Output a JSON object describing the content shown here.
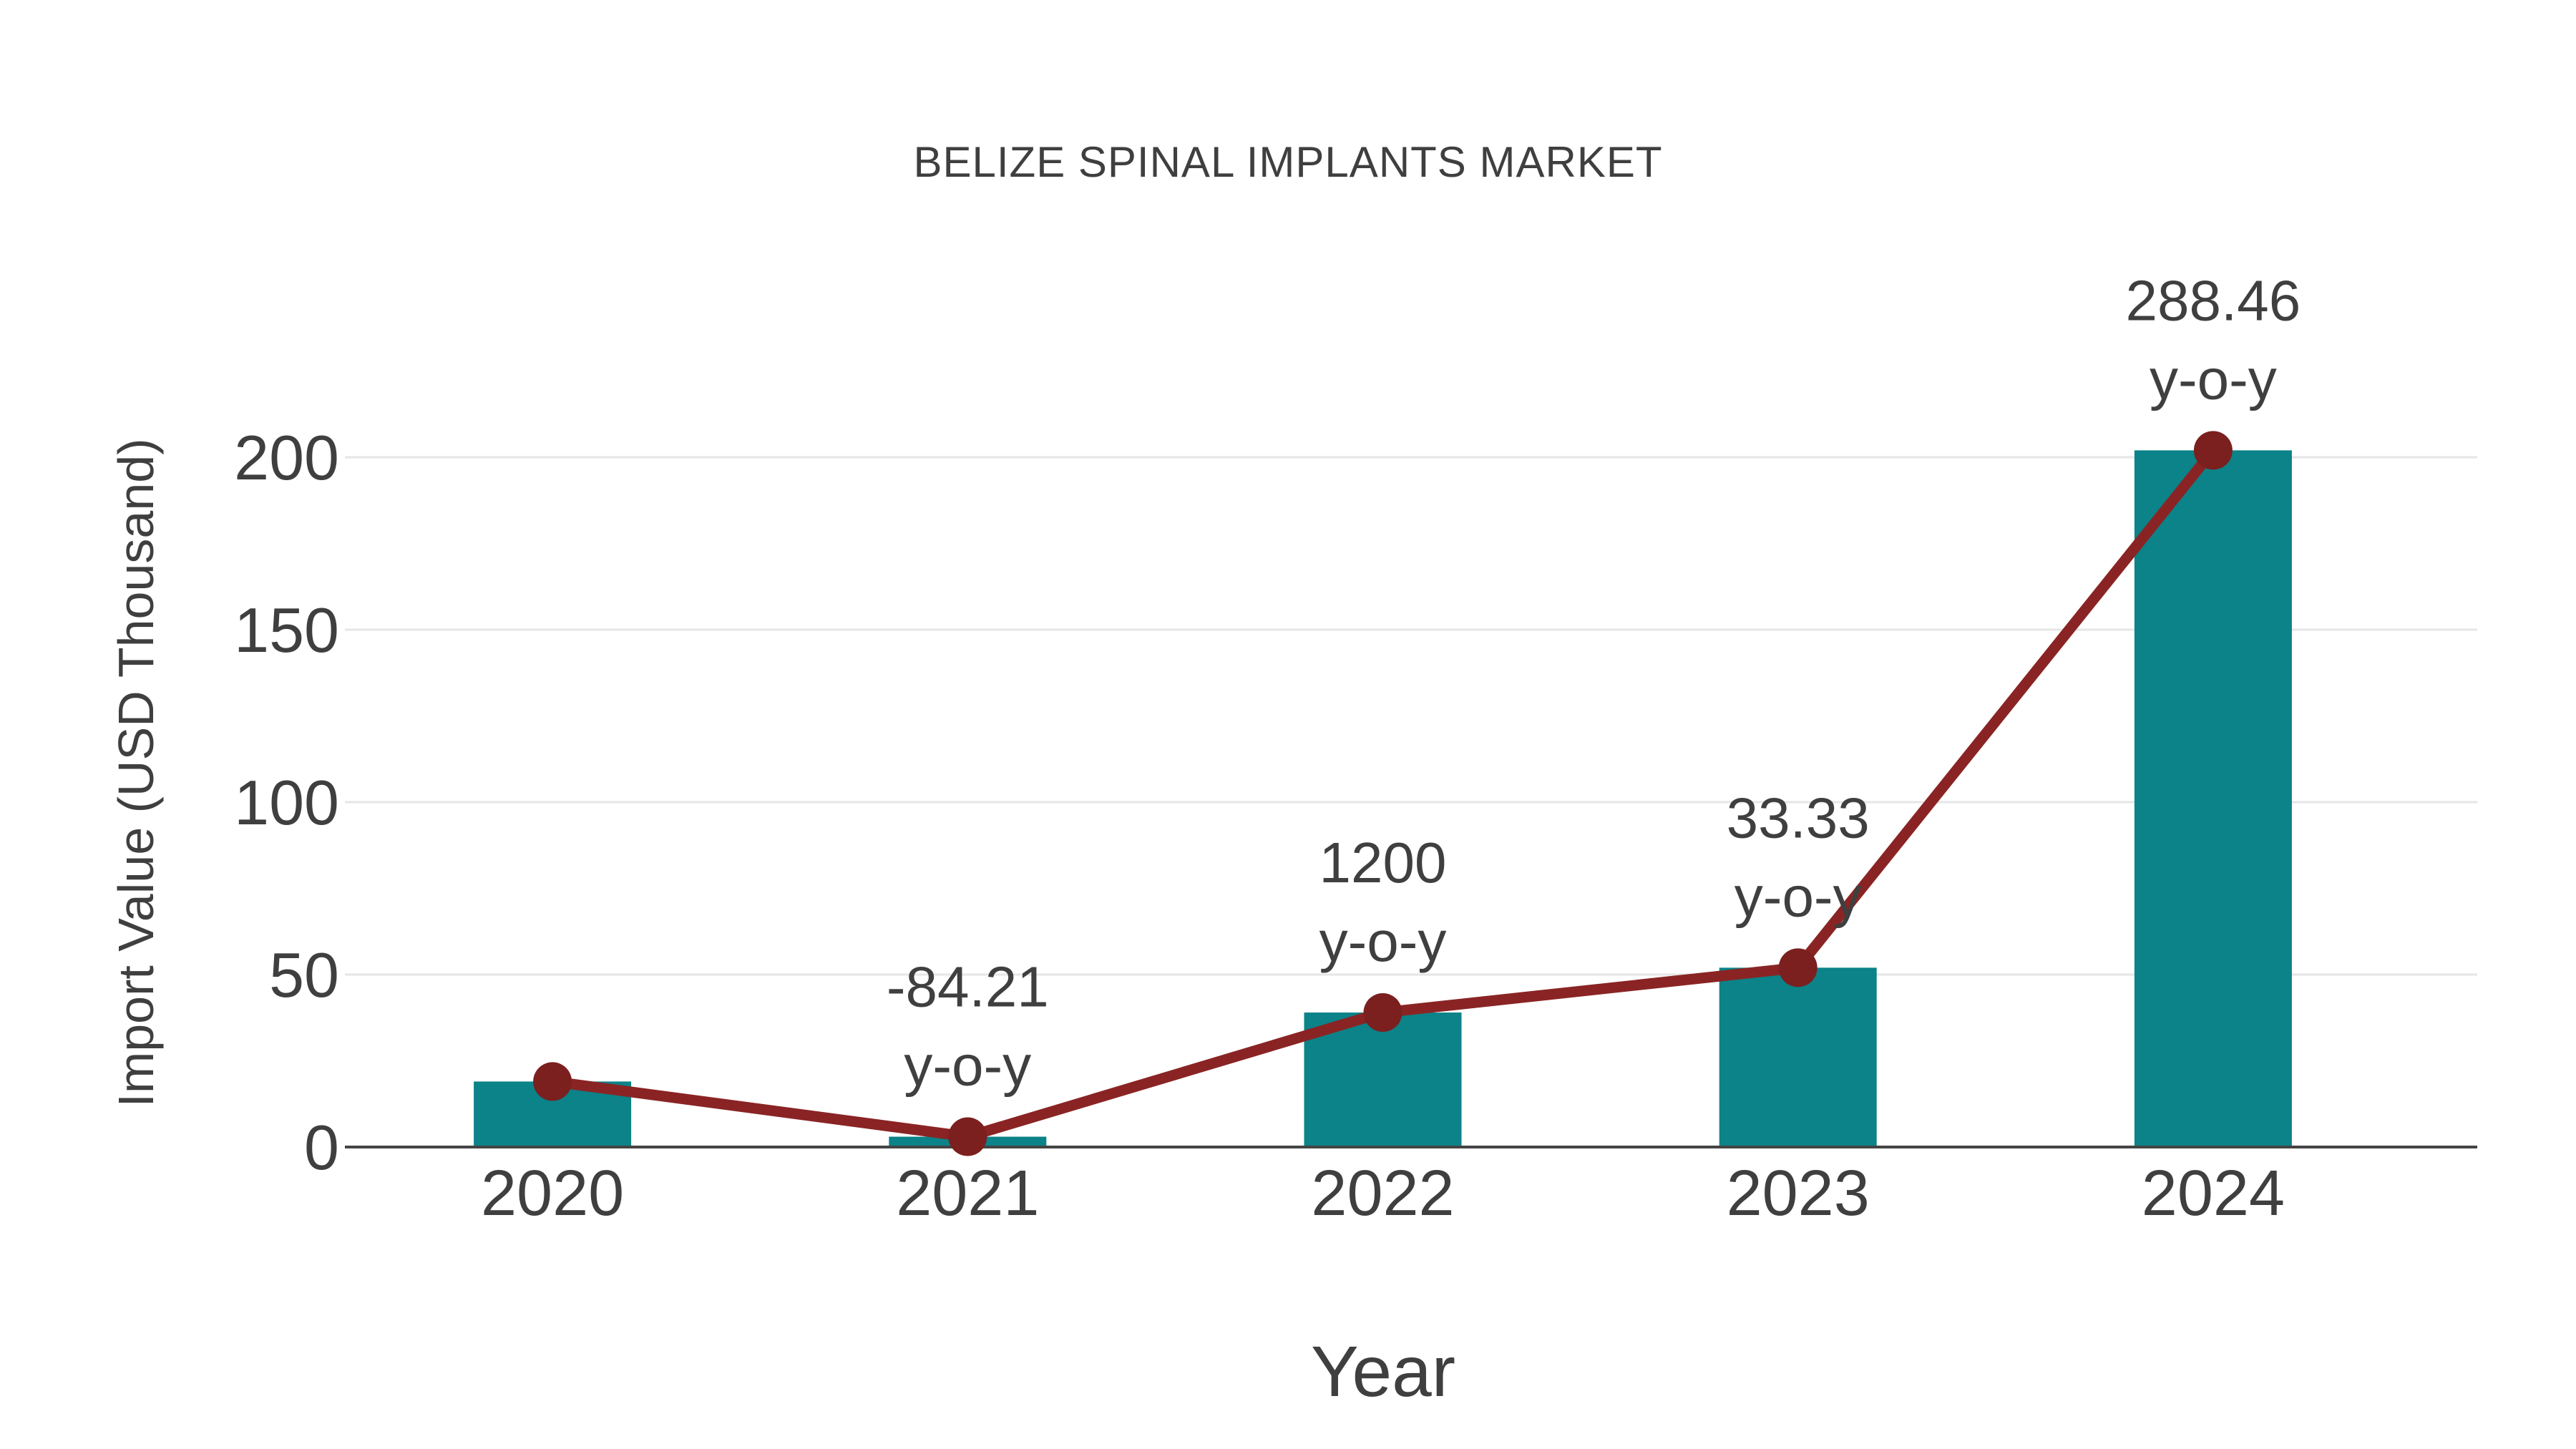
{
  "chart_data": {
    "type": "bar",
    "title": "BELIZE SPINAL IMPLANTS MARKET",
    "xlabel": "Year",
    "ylabel": "Import Value (USD Thousand)",
    "categories": [
      "2020",
      "2021",
      "2022",
      "2023",
      "2024"
    ],
    "series": [
      {
        "name": "import-value-bars",
        "type": "bar",
        "values": [
          19,
          3,
          39,
          52,
          202
        ]
      },
      {
        "name": "import-value-line",
        "type": "line",
        "values": [
          19,
          3,
          39,
          52,
          202
        ]
      }
    ],
    "annotations": [
      {
        "category": "2021",
        "lines": [
          "-84.21",
          "y-o-y"
        ]
      },
      {
        "category": "2022",
        "lines": [
          "1200",
          "y-o-y"
        ]
      },
      {
        "category": "2023",
        "lines": [
          "33.33",
          "y-o-y"
        ]
      },
      {
        "category": "2024",
        "lines": [
          "288.46",
          "y-o-y"
        ]
      }
    ],
    "yticks": [
      0,
      50,
      100,
      150,
      200
    ],
    "ylim": [
      0,
      210
    ],
    "grid": true,
    "legend_position": "none"
  },
  "colors": {
    "bar": "#0b8388",
    "line": "#8a2424",
    "marker": "#7b1f1f",
    "text": "#3f3f3f",
    "grid": "#e6e6e6",
    "axis": "#444444",
    "background": "#ffffff"
  }
}
